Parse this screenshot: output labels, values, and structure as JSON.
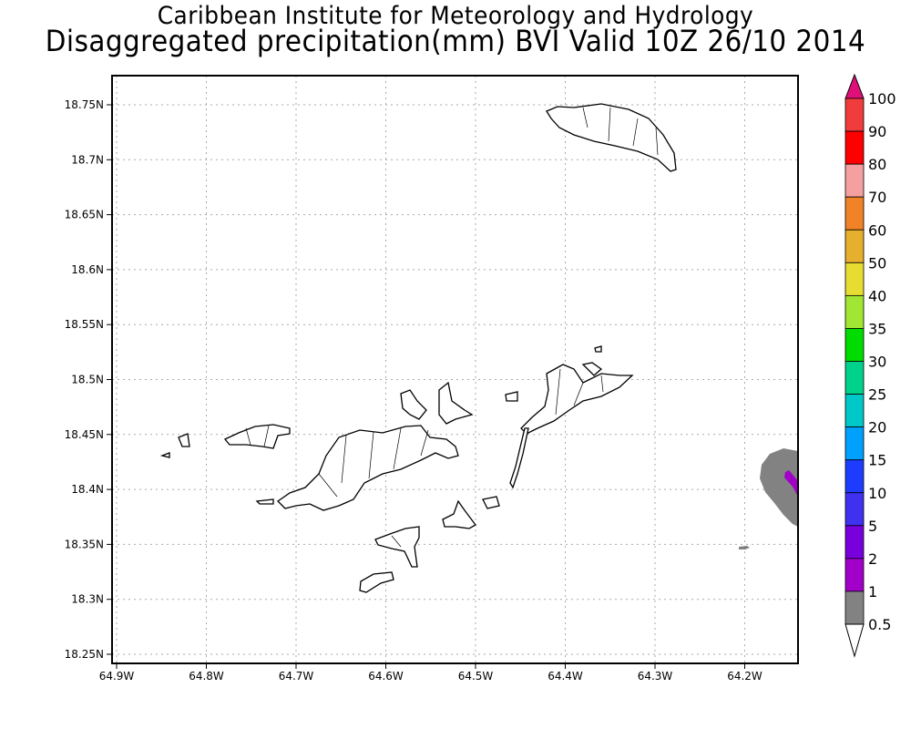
{
  "title": {
    "line1": "Caribbean Institute for Meteorology and Hydrology",
    "line2": "Disaggregated precipitation(mm) BVI Valid 10Z 26/10 2014"
  },
  "map": {
    "lon_ticks": [
      {
        "value": -64.9,
        "label": "64.9W"
      },
      {
        "value": -64.8,
        "label": "64.8W"
      },
      {
        "value": -64.7,
        "label": "64.7W"
      },
      {
        "value": -64.6,
        "label": "64.6W"
      },
      {
        "value": -64.5,
        "label": "64.5W"
      },
      {
        "value": -64.4,
        "label": "64.4W"
      },
      {
        "value": -64.3,
        "label": "64.3W"
      },
      {
        "value": -64.2,
        "label": "64.2W"
      }
    ],
    "lat_ticks": [
      {
        "value": 18.75,
        "label": "18.75N"
      },
      {
        "value": 18.7,
        "label": "18.7N"
      },
      {
        "value": 18.65,
        "label": "18.65N"
      },
      {
        "value": 18.6,
        "label": "18.6N"
      },
      {
        "value": 18.55,
        "label": "18.55N"
      },
      {
        "value": 18.5,
        "label": "18.5N"
      },
      {
        "value": 18.45,
        "label": "18.45N"
      },
      {
        "value": 18.4,
        "label": "18.4N"
      },
      {
        "value": 18.35,
        "label": "18.35N"
      },
      {
        "value": 18.3,
        "label": "18.3N"
      },
      {
        "value": 18.25,
        "label": "18.25N"
      }
    ]
  },
  "colorbar": {
    "labels": [
      "100",
      "90",
      "80",
      "70",
      "60",
      "50",
      "40",
      "35",
      "30",
      "25",
      "20",
      "15",
      "10",
      "5",
      "2",
      "1",
      "0.5"
    ],
    "colors": [
      "#f03c3c",
      "#ff0000",
      "#f5a0a0",
      "#f08228",
      "#e6af2d",
      "#e6dc32",
      "#a0e632",
      "#00dc00",
      "#00d28c",
      "#00c8c8",
      "#00a0ff",
      "#1e3cff",
      "#4030f0",
      "#7800dc",
      "#a000c8",
      "#828282"
    ],
    "over_color": "#e0107a",
    "under_color": "#ffffff"
  }
}
